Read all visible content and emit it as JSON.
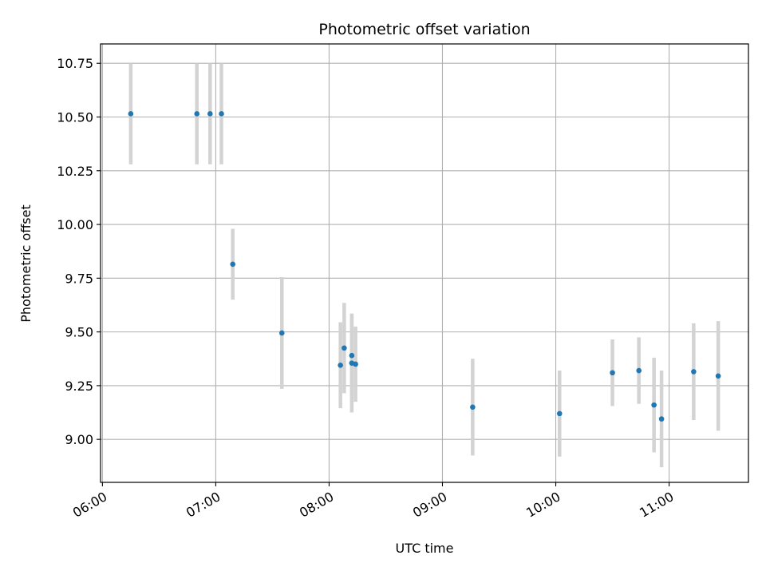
{
  "chart_data": {
    "type": "scatter",
    "title": "Photometric offset variation",
    "xlabel": "UTC time",
    "ylabel": "Photometric offset",
    "grid": true,
    "x_ticks": [
      "06:00",
      "07:00",
      "08:00",
      "09:00",
      "10:00",
      "11:00"
    ],
    "y_ticks": [
      9.0,
      9.25,
      9.5,
      9.75,
      10.0,
      10.25,
      10.5,
      10.75
    ],
    "xlim": [
      "05:59",
      "11:42"
    ],
    "ylim": [
      8.8,
      10.84
    ],
    "marker_color": "#1f77b4",
    "errorbar_color": "#d3d3d3",
    "points": [
      {
        "t": "06:15",
        "y": 10.515,
        "err": 0.235
      },
      {
        "t": "06:50",
        "y": 10.515,
        "err": 0.235
      },
      {
        "t": "06:57",
        "y": 10.515,
        "err": 0.235
      },
      {
        "t": "07:03",
        "y": 10.515,
        "err": 0.235
      },
      {
        "t": "07:09",
        "y": 9.815,
        "err": 0.165
      },
      {
        "t": "07:35",
        "y": 9.495,
        "err": 0.26
      },
      {
        "t": "08:06",
        "y": 9.345,
        "err": 0.2
      },
      {
        "t": "08:08",
        "y": 9.425,
        "err": 0.21
      },
      {
        "t": "08:12",
        "y": 9.355,
        "err": 0.23
      },
      {
        "t": "08:12",
        "y": 9.39,
        "err": 0.195
      },
      {
        "t": "08:14",
        "y": 9.35,
        "err": 0.175
      },
      {
        "t": "09:16",
        "y": 9.15,
        "err": 0.225
      },
      {
        "t": "10:02",
        "y": 9.12,
        "err": 0.2
      },
      {
        "t": "10:30",
        "y": 9.31,
        "err": 0.155
      },
      {
        "t": "10:44",
        "y": 9.32,
        "err": 0.155
      },
      {
        "t": "10:52",
        "y": 9.16,
        "err": 0.22
      },
      {
        "t": "10:56",
        "y": 9.095,
        "err": 0.225
      },
      {
        "t": "11:13",
        "y": 9.315,
        "err": 0.225
      },
      {
        "t": "11:26",
        "y": 9.295,
        "err": 0.255
      }
    ]
  }
}
